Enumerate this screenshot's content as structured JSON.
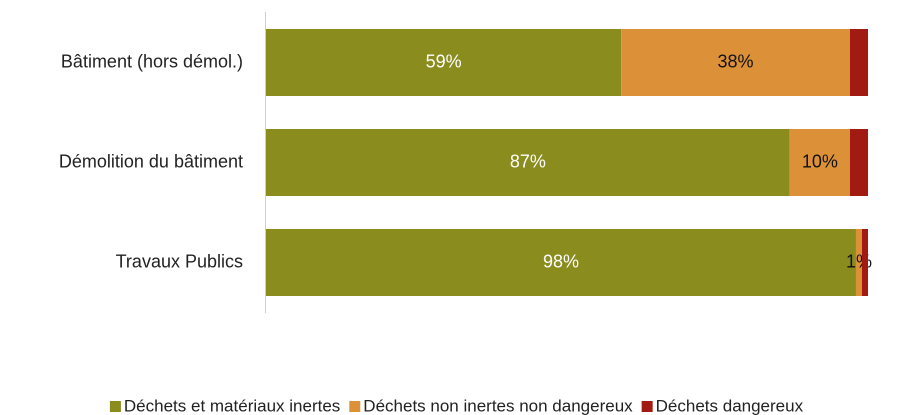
{
  "chart_data": {
    "type": "stacked-barh",
    "categories": [
      "Bâtiment (hors démol.)",
      "Démolition du bâtiment",
      "Travaux Publics"
    ],
    "series": [
      {
        "name": "Déchets et matériaux inertes",
        "color": "#8a8c1e",
        "values": [
          59,
          87,
          98
        ],
        "value_labels": [
          "59%",
          "87%",
          "98%"
        ]
      },
      {
        "name": "Déchets non inertes non dangereux",
        "color": "#dc9139",
        "values": [
          38,
          10,
          1
        ],
        "value_labels": [
          "38%",
          "10%",
          "1%"
        ]
      },
      {
        "name": "Déchets dangereux",
        "color": "#a11b12",
        "values": [
          3,
          3,
          1
        ]
      }
    ],
    "xlim": [
      0,
      100
    ],
    "legend": "bottom"
  }
}
